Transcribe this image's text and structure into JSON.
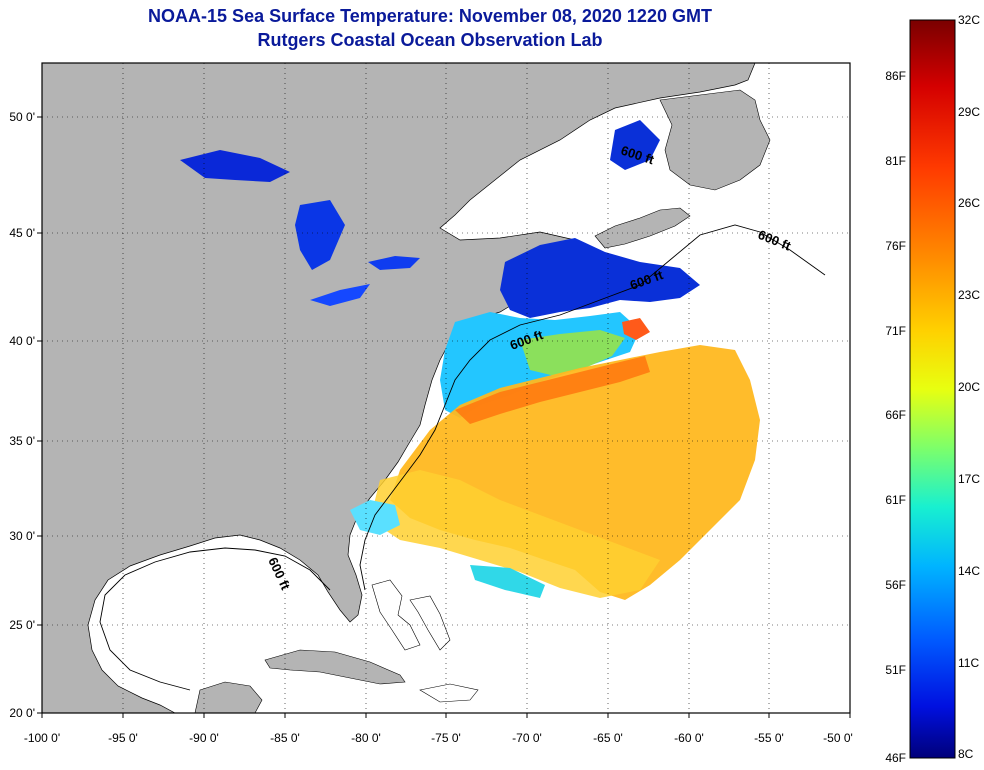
{
  "header": {
    "title": "NOAA-15 Sea Surface Temperature:  November 08, 2020 1220 GMT",
    "subtitle": "Rutgers Coastal Ocean Observation Lab"
  },
  "map": {
    "lon_labels": [
      "-100 0'",
      "-95 0'",
      "-90 0'",
      "-85 0'",
      "-80 0'",
      "-75 0'",
      "-70 0'",
      "-65 0'",
      "-60 0'",
      "-55 0'",
      "-50 0'"
    ],
    "lat_labels": [
      "50 0'",
      "45 0'",
      "40 0'",
      "35 0'",
      "30 0'",
      "25 0'",
      "20 0'"
    ],
    "contour_labels": [
      "600 ft",
      "600 ft",
      "600 ft",
      "600 ft",
      "600 ft"
    ],
    "colors": {
      "land": "#b4b4b4",
      "ocean": "#ffffff",
      "frame": "#000000"
    }
  },
  "colorbar": {
    "celsius_labels": [
      "32C",
      "29C",
      "26C",
      "23C",
      "20C",
      "17C",
      "14C",
      "11C",
      "8C"
    ],
    "fahrenheit_labels": [
      "86F",
      "81F",
      "76F",
      "71F",
      "66F",
      "61F",
      "56F",
      "51F",
      "46F"
    ],
    "stops": [
      "#7a0000",
      "#d40000",
      "#ff3a00",
      "#ff8a00",
      "#ffd000",
      "#e8ff10",
      "#7dff6a",
      "#18f0d0",
      "#00b4ff",
      "#005aff",
      "#0010e0",
      "#00007a"
    ]
  }
}
